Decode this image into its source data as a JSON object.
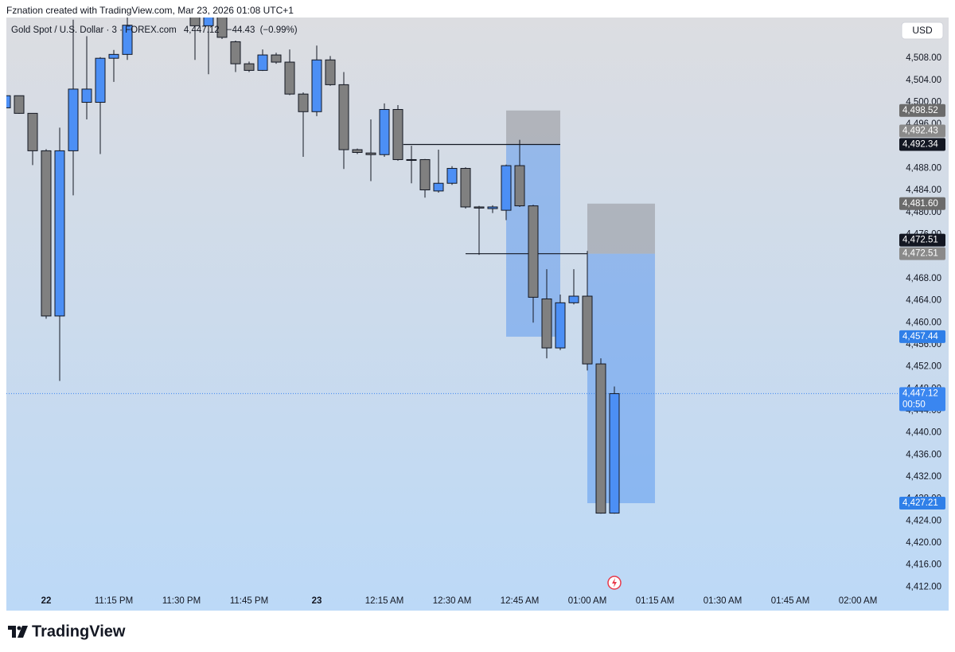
{
  "header": "Fznation created with TradingView.com, Mar 23, 2026 01:08 UTC+1",
  "brand": "TradingView",
  "chart_data": {
    "type": "candlestick",
    "symbol": "Gold Spot / U.S. Dollar · 3 · FOREX.com",
    "last": {
      "value": 4447.12,
      "label": "4,447.12"
    },
    "change": {
      "value": -44.43,
      "label": "−44.43"
    },
    "change_pct": {
      "value": -0.99,
      "label": "(−0.99%)"
    },
    "currency": "USD",
    "up_color": "#4c8ff5",
    "down_color": "#808080",
    "categories": [
      null,
      null,
      null,
      "22",
      null,
      null,
      null,
      null,
      "11:15 PM",
      null,
      null,
      null,
      null,
      "11:30 PM",
      null,
      null,
      null,
      null,
      "11:45 PM",
      null,
      null,
      null,
      null,
      "23",
      null,
      null,
      null,
      null,
      "12:15 AM",
      null,
      null,
      null,
      null,
      "12:30 AM",
      null,
      null,
      null,
      null,
      "12:45 AM",
      null,
      null,
      null,
      null,
      "01:00 AM",
      null,
      null,
      null,
      null,
      "01:15 AM",
      null,
      null,
      null,
      null,
      "01:30 AM",
      null,
      null,
      null,
      null,
      "01:45 AM",
      null,
      null,
      null,
      null,
      "02:00 AM",
      null,
      null,
      null
    ],
    "open": [
      4499.0,
      4501.2,
      4498.0,
      4491.2,
      4461.2,
      4491.2,
      4500.0,
      4500.0,
      4508.0,
      4508.7,
      null,
      null,
      null,
      null,
      4518.0,
      4513.9,
      4516.0,
      4511.0,
      4507.0,
      4505.8,
      4508.6,
      4507.3,
      4501.5,
      4498.3,
      4507.7,
      4503.2,
      4491.4,
      4490.8,
      4490.5,
      4498.7,
      4489.6,
      4489.6,
      4483.9,
      4485.3,
      4488.0,
      4481.0,
      4480.7,
      4480.4,
      4488.5,
      4481.2,
      4464.3,
      4455.4,
      4463.6,
      4464.8,
      4452.5,
      4425.4,
      null,
      null,
      null,
      null,
      null,
      null,
      null,
      null,
      null,
      null,
      null,
      null,
      null,
      null,
      null,
      null,
      null,
      null,
      null,
      null,
      null
    ],
    "high": [
      4501.5,
      4501.2,
      4498.0,
      4491.5,
      4495.4,
      4515.0,
      4512.0,
      4508.2,
      4509.5,
      4515.5,
      null,
      null,
      null,
      null,
      4519.0,
      4517.0,
      4516.5,
      4511.2,
      4507.4,
      4509.6,
      4509.0,
      4509.6,
      4501.8,
      4510.3,
      4508.4,
      4505.5,
      4491.6,
      4496.9,
      4499.8,
      4499.5,
      4492.1,
      4489.7,
      4491.4,
      4488.4,
      4488.2,
      4481.2,
      4481.3,
      4488.7,
      4493.2,
      4481.4,
      4469.7,
      4465.1,
      4469.7,
      4473.0,
      4453.5,
      4448.4,
      null,
      null,
      null,
      null,
      null,
      null,
      null,
      null,
      null,
      null,
      null,
      null,
      null,
      null,
      null,
      null,
      null,
      null,
      null,
      null,
      null
    ],
    "low": [
      4498.8,
      4497.9,
      4488.6,
      4460.7,
      4449.4,
      4483.1,
      4496.9,
      4490.6,
      4503.7,
      4507.7,
      null,
      null,
      null,
      null,
      4507.7,
      4505.1,
      4511.5,
      4505.5,
      4505.5,
      4505.7,
      4507.0,
      4501.3,
      4490.1,
      4497.5,
      4503.0,
      4487.9,
      4490.6,
      4485.7,
      4490.1,
      4489.4,
      4485.3,
      4482.7,
      4483.6,
      4485.0,
      4480.7,
      4472.3,
      4479.9,
      4478.6,
      4481.0,
      4460.0,
      4453.5,
      4455.0,
      4463.3,
      4451.3,
      4425.3,
      4425.3,
      null,
      null,
      null,
      null,
      null,
      null,
      null,
      null,
      null,
      null,
      null,
      null,
      null,
      null,
      null,
      null,
      null,
      null,
      null,
      null,
      null
    ],
    "close": [
      4501.2,
      4498.0,
      4491.2,
      4461.2,
      4491.2,
      4502.4,
      4502.4,
      4508.0,
      4508.7,
      4514.0,
      null,
      null,
      null,
      null,
      4513.9,
      4516.0,
      4511.8,
      4507.0,
      4505.8,
      4508.6,
      4507.3,
      4501.5,
      4498.3,
      4507.7,
      4503.2,
      4491.4,
      4490.9,
      4490.5,
      4498.7,
      4489.6,
      4489.5,
      4484.1,
      4485.3,
      4488.0,
      4481.0,
      4480.8,
      4481.0,
      4488.5,
      4481.2,
      4464.6,
      4455.4,
      4463.6,
      4464.8,
      4452.5,
      4425.4,
      4447.1,
      null,
      null,
      null,
      null,
      null,
      null,
      null,
      null,
      null,
      null,
      null,
      null,
      null,
      null,
      null,
      null,
      null,
      null,
      null,
      null,
      null
    ],
    "ylim": [
      4407.7,
      4515.4
    ],
    "yticks": [
      {
        "value": 4412,
        "label": "4,412.00"
      },
      {
        "value": 4416,
        "label": "4,416.00"
      },
      {
        "value": 4420,
        "label": "4,420.00"
      },
      {
        "value": 4424,
        "label": "4,424.00"
      },
      {
        "value": 4428,
        "label": "4,428.00"
      },
      {
        "value": 4432,
        "label": "4,432.00"
      },
      {
        "value": 4436,
        "label": "4,436.00"
      },
      {
        "value": 4440,
        "label": "4,440.00"
      },
      {
        "value": 4444,
        "label": "4,444.00"
      },
      {
        "value": 4448,
        "label": "4,448.00"
      },
      {
        "value": 4452,
        "label": "4,452.00"
      },
      {
        "value": 4456,
        "label": "4,456.00"
      },
      {
        "value": 4460,
        "label": "4,460.00"
      },
      {
        "value": 4464,
        "label": "4,464.00"
      },
      {
        "value": 4468,
        "label": "4,468.00"
      },
      {
        "value": 4472,
        "label": "4,472.00"
      },
      {
        "value": 4476,
        "label": "4,476.00"
      },
      {
        "value": 4480,
        "label": "4,480.00"
      },
      {
        "value": 4484,
        "label": "4,484.00"
      },
      {
        "value": 4488,
        "label": "4,488.00"
      },
      {
        "value": 4492,
        "label": "4,492.00"
      },
      {
        "value": 4496,
        "label": "4,496.00"
      },
      {
        "value": 4500,
        "label": "4,500.00"
      },
      {
        "value": 4504,
        "label": "4,504.00"
      },
      {
        "value": 4508,
        "label": "4,508.00"
      }
    ],
    "grid": false,
    "positions": [
      {
        "x": [
          37,
          41
        ],
        "stop": 4498.52,
        "entry": 4492.43,
        "target": 4457.44
      },
      {
        "x": [
          43,
          48
        ],
        "stop": 4481.6,
        "entry": 4472.51,
        "target": 4427.21
      }
    ],
    "lines": [
      {
        "x": [
          29.4,
          41
        ],
        "value": 4492.34
      },
      {
        "x": [
          34,
          43
        ],
        "value": 4472.51
      }
    ],
    "price_labels": [
      {
        "value": 4498.52,
        "label": "4,498.52",
        "color": "#6b6b6b"
      },
      {
        "value": 4492.43,
        "label": "4,492.43",
        "color": "#8a8a8a"
      },
      {
        "value": 4492.34,
        "label": "4,492.34",
        "color": "#131722"
      },
      {
        "value": 4481.6,
        "label": "4,481.60",
        "color": "#6b6b6b"
      },
      {
        "value": 4472.51,
        "label": "4,472.51",
        "color": "#131722"
      },
      {
        "value": 4472.51,
        "label": "4,472.51",
        "color": "#8a8a8a"
      },
      {
        "value": 4457.44,
        "label": "4,457.44",
        "color": "#2f7fe8"
      },
      {
        "value": 4447.12,
        "label": "4,447.12",
        "sublabel": "00:50",
        "color": "#3a86f0"
      },
      {
        "value": 4427.21,
        "label": "4,427.21",
        "color": "#2f7fe8"
      }
    ]
  }
}
